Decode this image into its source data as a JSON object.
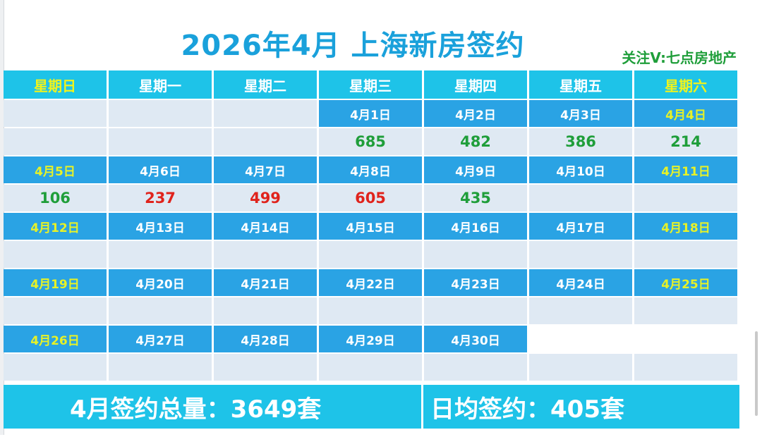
{
  "title": "2026年4月 上海新房签约",
  "follow": "关注V:七点房地产",
  "weekdays": [
    "星期日",
    "星期一",
    "星期二",
    "星期三",
    "星期四",
    "星期五",
    "星期六"
  ],
  "weeks": [
    {
      "dates": [
        "",
        "",
        "",
        "4月1日",
        "4月2日",
        "4月3日",
        "4月4日"
      ],
      "values": [
        "",
        "",
        "",
        "685",
        "482",
        "386",
        "214"
      ],
      "value_colors": [
        "",
        "",
        "",
        "green",
        "green",
        "green",
        "green"
      ]
    },
    {
      "dates": [
        "4月5日",
        "4月6日",
        "4月7日",
        "4月8日",
        "4月9日",
        "4月10日",
        "4月11日"
      ],
      "values": [
        "106",
        "237",
        "499",
        "605",
        "435",
        "",
        ""
      ],
      "value_colors": [
        "green",
        "red",
        "red",
        "red",
        "green",
        "",
        ""
      ]
    },
    {
      "dates": [
        "4月12日",
        "4月13日",
        "4月14日",
        "4月15日",
        "4月16日",
        "4月17日",
        "4月18日"
      ],
      "values": [
        "",
        "",
        "",
        "",
        "",
        "",
        ""
      ],
      "value_colors": [
        "",
        "",
        "",
        "",
        "",
        "",
        ""
      ]
    },
    {
      "dates": [
        "4月19日",
        "4月20日",
        "4月21日",
        "4月22日",
        "4月23日",
        "4月24日",
        "4月25日"
      ],
      "values": [
        "",
        "",
        "",
        "",
        "",
        "",
        ""
      ],
      "value_colors": [
        "",
        "",
        "",
        "",
        "",
        "",
        ""
      ]
    },
    {
      "dates": [
        "4月26日",
        "4月27日",
        "4月28日",
        "4月29日",
        "4月30日",
        "",
        ""
      ],
      "values": [
        "",
        "",
        "",
        "",
        "",
        "",
        ""
      ],
      "value_colors": [
        "",
        "",
        "",
        "",
        "",
        "",
        ""
      ]
    }
  ],
  "summary": {
    "total": "4月签约总量：3649套",
    "daily_avg": "日均签约：405套"
  },
  "colors": {
    "header_bg": "#1ec3e8",
    "date_bg": "#2aa3e4",
    "value_bg": "#dfe9f3",
    "weekend_text": "#f0f31c",
    "up_green": "#1f9e3a",
    "down_red": "#e0231c",
    "title": "#1aa1db"
  }
}
